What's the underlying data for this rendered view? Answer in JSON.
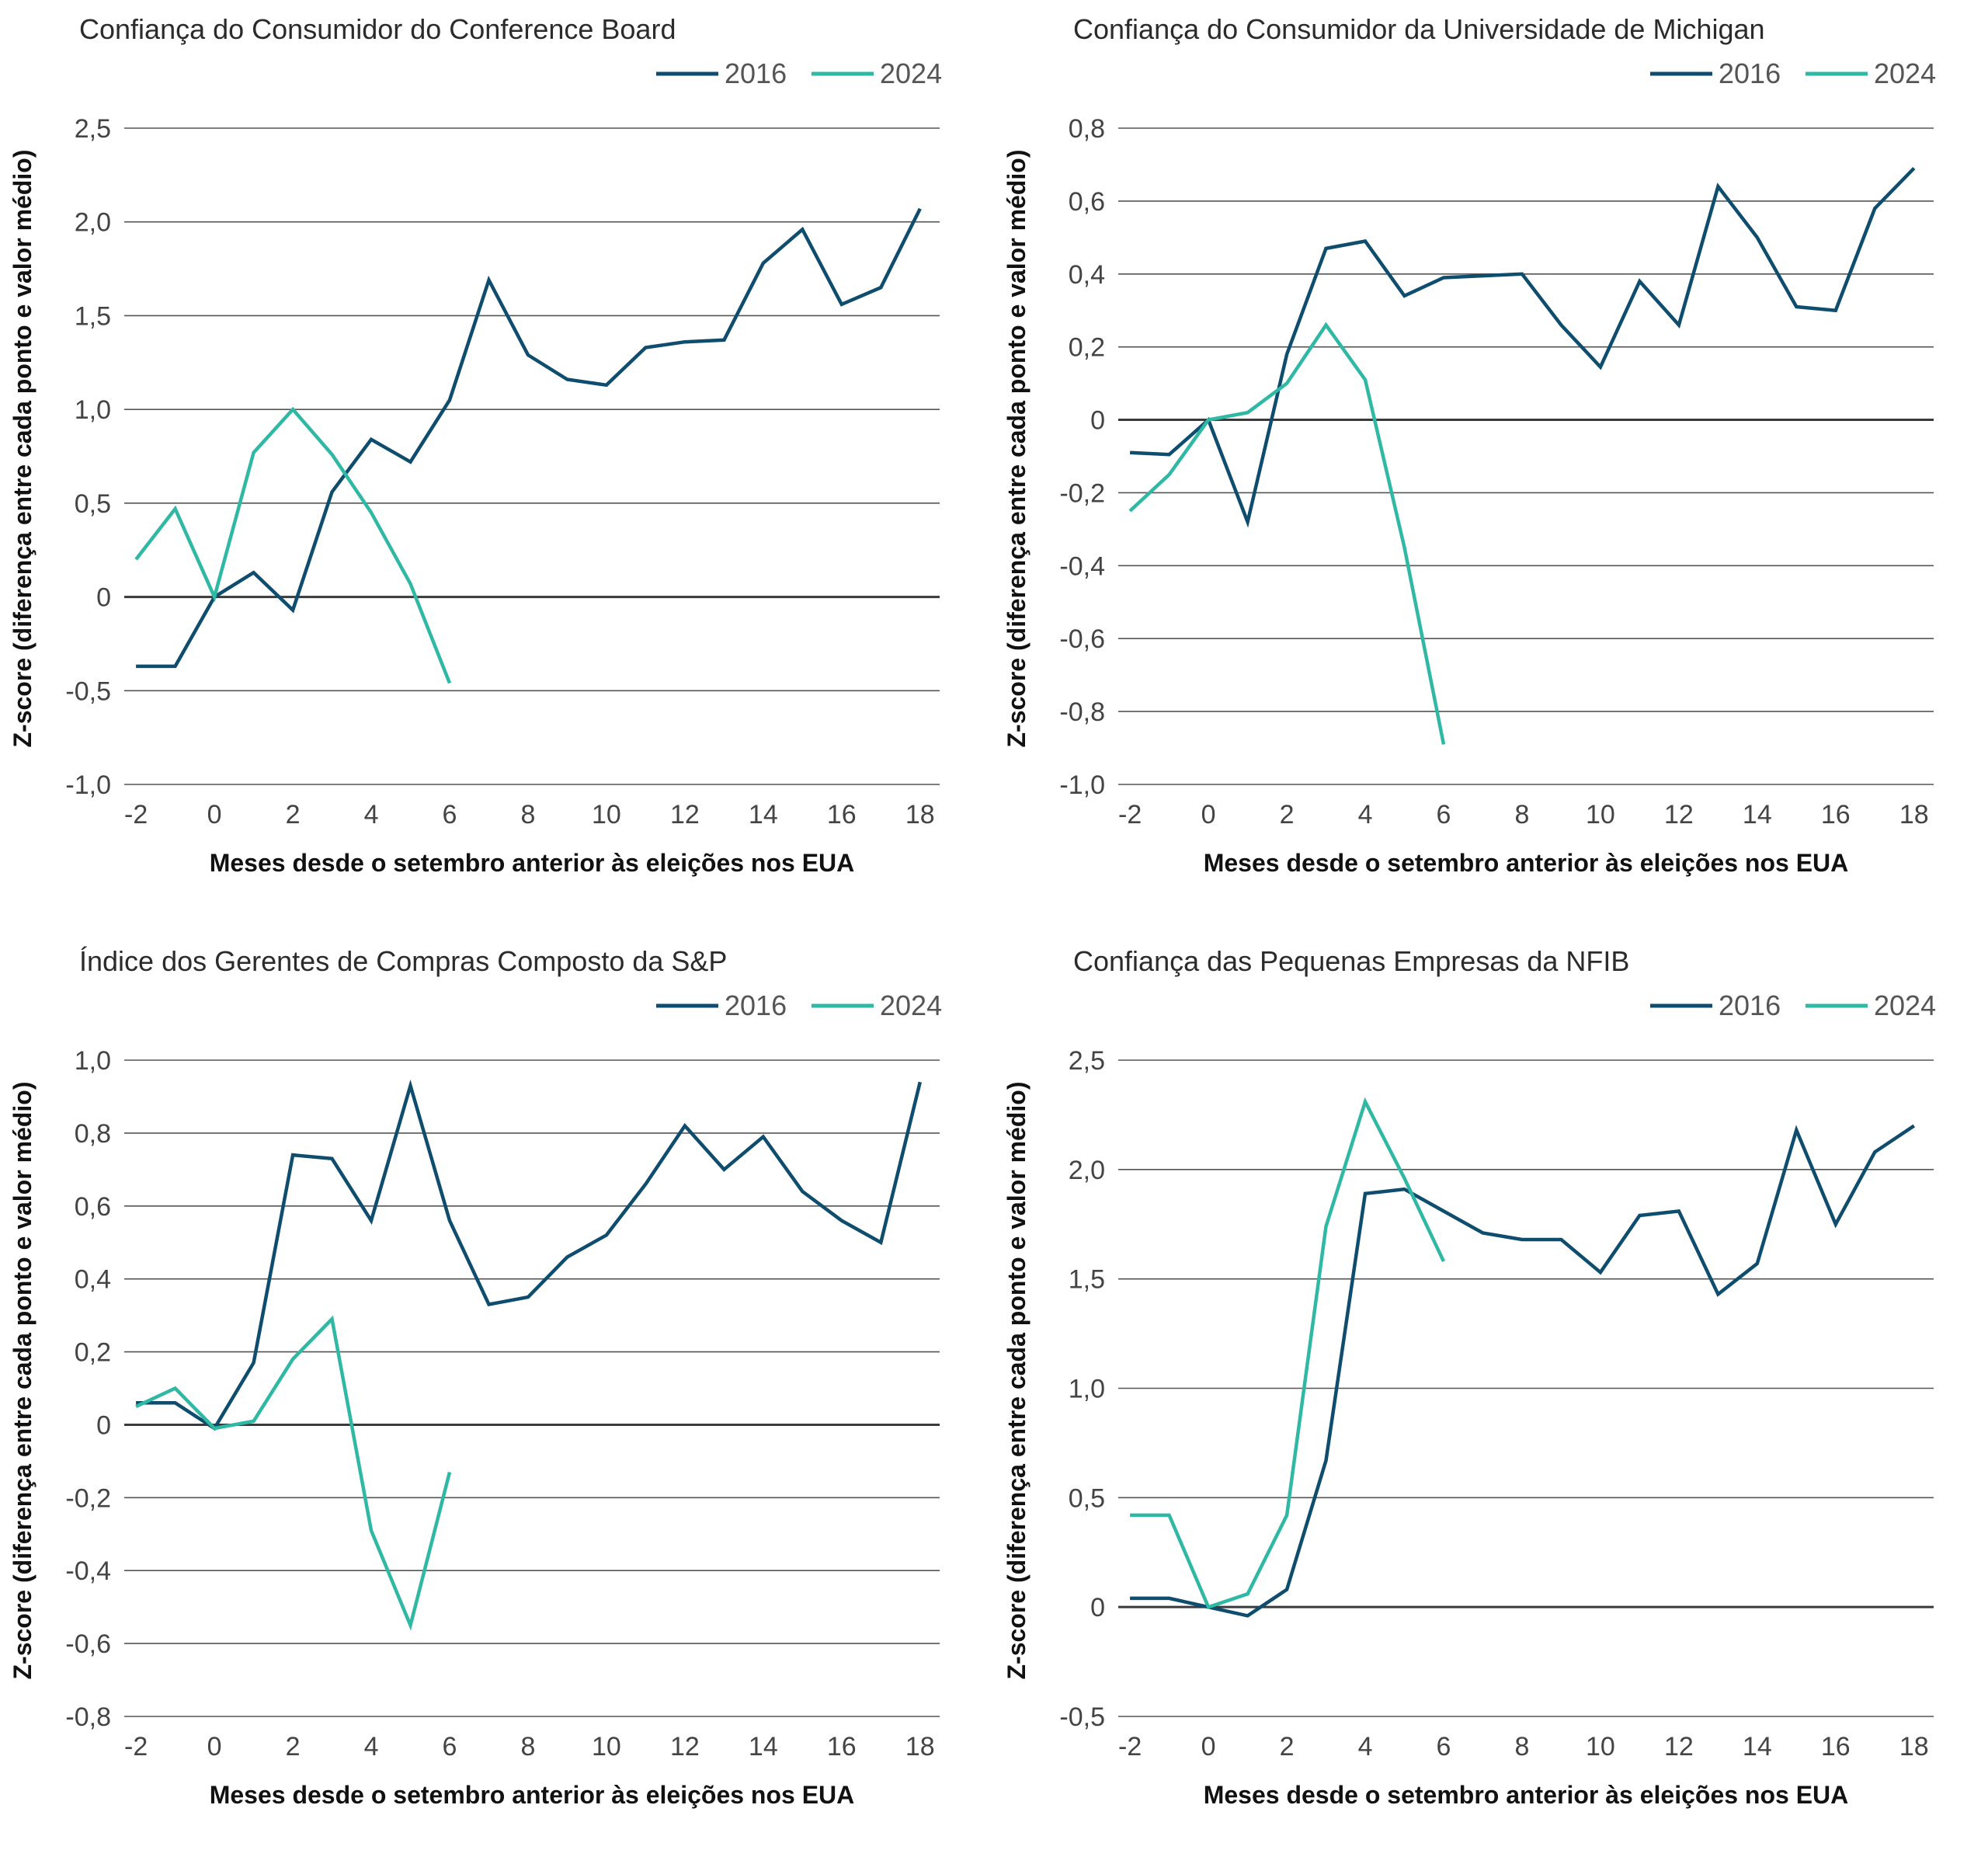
{
  "colors": {
    "s2016": "#0e4d6e",
    "s2024": "#2fb8a4",
    "grid": "#555555"
  },
  "legend": [
    "2016",
    "2024"
  ],
  "chart_data": [
    {
      "type": "line",
      "title": "Confiança do Consumidor do Conference Board",
      "xlabel": "Meses desde o setembro anterior às eleições nos EUA",
      "ylabel": "Z-score (diferença entre cada ponto e valor médio)",
      "xlim": [
        -2.3,
        18.5
      ],
      "ylim": [
        -1.0,
        2.5
      ],
      "xticks": [
        -2,
        0,
        2,
        4,
        6,
        8,
        10,
        12,
        14,
        16,
        18
      ],
      "xtick_labels": [
        "-2",
        "0",
        "2",
        "4",
        "6",
        "8",
        "10",
        "12",
        "14",
        "16",
        "18"
      ],
      "yticks": [
        -1.0,
        -0.5,
        0,
        0.5,
        1.0,
        1.5,
        2.0,
        2.5
      ],
      "ytick_labels": [
        "-1,0",
        "-0,5",
        "0",
        "0,5",
        "1,0",
        "1,5",
        "2,0",
        "2,5"
      ],
      "series": [
        {
          "name": "2016",
          "x": [
            -2,
            -1,
            0,
            1,
            2,
            3,
            4,
            5,
            6,
            7,
            8,
            9,
            10,
            11,
            12,
            13,
            14,
            15,
            16,
            17,
            18
          ],
          "y": [
            -0.37,
            -0.37,
            0.0,
            0.13,
            -0.07,
            0.56,
            0.84,
            0.72,
            1.05,
            1.69,
            1.29,
            1.16,
            1.13,
            1.33,
            1.36,
            1.37,
            1.78,
            1.96,
            1.56,
            1.65,
            2.07
          ]
        },
        {
          "name": "2024",
          "x": [
            -2,
            -1,
            0,
            1,
            2,
            3,
            4,
            5,
            6
          ],
          "y": [
            0.2,
            0.47,
            0.0,
            0.77,
            1.0,
            0.76,
            0.45,
            0.07,
            -0.46
          ]
        }
      ],
      "legend_position": "top-right",
      "grid": true
    },
    {
      "type": "line",
      "title": "Confiança do Consumidor da Universidade de Michigan",
      "xlabel": "Meses desde o setembro anterior às eleições nos EUA",
      "ylabel": "Z-score (diferença entre cada ponto e valor médio)",
      "xlim": [
        -2.3,
        18.5
      ],
      "ylim": [
        -1.0,
        0.8
      ],
      "xticks": [
        -2,
        0,
        2,
        4,
        6,
        8,
        10,
        12,
        14,
        16,
        18
      ],
      "xtick_labels": [
        "-2",
        "0",
        "2",
        "4",
        "6",
        "8",
        "10",
        "12",
        "14",
        "16",
        "18"
      ],
      "yticks": [
        -1.0,
        -0.8,
        -0.6,
        -0.4,
        -0.2,
        0,
        0.2,
        0.4,
        0.6,
        0.8
      ],
      "ytick_labels": [
        "-1,0",
        "-0,8",
        "-0,6",
        "-0,4",
        "-0,2",
        "0",
        "0,2",
        "0,4",
        "0,6",
        "0,8"
      ],
      "series": [
        {
          "name": "2016",
          "x": [
            -2,
            -1,
            0,
            1,
            2,
            3,
            4,
            5,
            6,
            7,
            8,
            9,
            10,
            11,
            12,
            13,
            14,
            15,
            16,
            17,
            18
          ],
          "y": [
            -0.09,
            -0.095,
            0.0,
            -0.28,
            0.18,
            0.47,
            0.49,
            0.34,
            0.39,
            0.395,
            0.4,
            0.26,
            0.145,
            0.38,
            0.26,
            0.64,
            0.5,
            0.31,
            0.3,
            0.58,
            0.69
          ]
        },
        {
          "name": "2024",
          "x": [
            -2,
            -1,
            0,
            1,
            2,
            3,
            4,
            5,
            6
          ],
          "y": [
            -0.25,
            -0.15,
            0.0,
            0.02,
            0.1,
            0.26,
            0.11,
            -0.35,
            -0.89
          ]
        }
      ],
      "legend_position": "top-right",
      "grid": true
    },
    {
      "type": "line",
      "title": "Índice dos Gerentes de Compras Composto da S&P",
      "xlabel": "Meses desde o setembro anterior às eleições nos EUA",
      "ylabel": "Z-score (diferença entre cada ponto e valor médio)",
      "xlim": [
        -2.3,
        18.5
      ],
      "ylim": [
        -0.8,
        1.0
      ],
      "xticks": [
        -2,
        0,
        2,
        4,
        6,
        8,
        10,
        12,
        14,
        16,
        18
      ],
      "xtick_labels": [
        "-2",
        "0",
        "2",
        "4",
        "6",
        "8",
        "10",
        "12",
        "14",
        "16",
        "18"
      ],
      "yticks": [
        -0.8,
        -0.6,
        -0.4,
        -0.2,
        0,
        0.2,
        0.4,
        0.6,
        0.8,
        1.0
      ],
      "ytick_labels": [
        "-0,8",
        "-0,6",
        "-0,4",
        "-0,2",
        "0",
        "0,2",
        "0,4",
        "0,6",
        "0,8",
        "1,0"
      ],
      "series": [
        {
          "name": "2016",
          "x": [
            -2,
            -1,
            0,
            1,
            2,
            3,
            4,
            5,
            6,
            7,
            8,
            9,
            10,
            11,
            12,
            13,
            14,
            15,
            16,
            17,
            18
          ],
          "y": [
            0.06,
            0.06,
            -0.01,
            0.17,
            0.74,
            0.73,
            0.56,
            0.93,
            0.56,
            0.33,
            0.35,
            0.46,
            0.52,
            0.66,
            0.82,
            0.7,
            0.79,
            0.64,
            0.56,
            0.5,
            0.94
          ]
        },
        {
          "name": "2024",
          "x": [
            -2,
            -1,
            0,
            1,
            2,
            3,
            4,
            5,
            6
          ],
          "y": [
            0.05,
            0.1,
            -0.01,
            0.01,
            0.18,
            0.29,
            -0.29,
            -0.55,
            -0.13
          ]
        }
      ],
      "legend_position": "top-right",
      "grid": true
    },
    {
      "type": "line",
      "title": "Confiança das Pequenas Empresas da NFIB",
      "xlabel": "Meses desde o setembro anterior às eleições nos EUA",
      "ylabel": "Z-score (diferença entre cada ponto e valor médio)",
      "xlim": [
        -2.3,
        18.5
      ],
      "ylim": [
        -0.5,
        2.5
      ],
      "xticks": [
        -2,
        0,
        2,
        4,
        6,
        8,
        10,
        12,
        14,
        16,
        18
      ],
      "xtick_labels": [
        "-2",
        "0",
        "2",
        "4",
        "6",
        "8",
        "10",
        "12",
        "14",
        "16",
        "18"
      ],
      "yticks": [
        -0.5,
        0,
        0.5,
        1.0,
        1.5,
        2.0,
        2.5
      ],
      "ytick_labels": [
        "-0,5",
        "0",
        "0,5",
        "1,0",
        "1,5",
        "2,0",
        "2,5"
      ],
      "series": [
        {
          "name": "2016",
          "x": [
            -2,
            -1,
            0,
            1,
            2,
            3,
            4,
            5,
            6,
            7,
            8,
            9,
            10,
            11,
            12,
            13,
            14,
            15,
            16,
            17,
            18
          ],
          "y": [
            0.04,
            0.04,
            0.0,
            -0.04,
            0.08,
            0.67,
            1.89,
            1.91,
            1.81,
            1.71,
            1.68,
            1.68,
            1.53,
            1.79,
            1.81,
            1.43,
            1.57,
            2.18,
            1.75,
            2.08,
            2.2
          ]
        },
        {
          "name": "2024",
          "x": [
            -2,
            -1,
            0,
            1,
            2,
            3,
            4,
            5,
            6
          ],
          "y": [
            0.42,
            0.42,
            0.0,
            0.06,
            0.42,
            1.74,
            2.31,
            1.96,
            1.58
          ]
        }
      ],
      "legend_position": "top-right",
      "grid": true
    }
  ]
}
